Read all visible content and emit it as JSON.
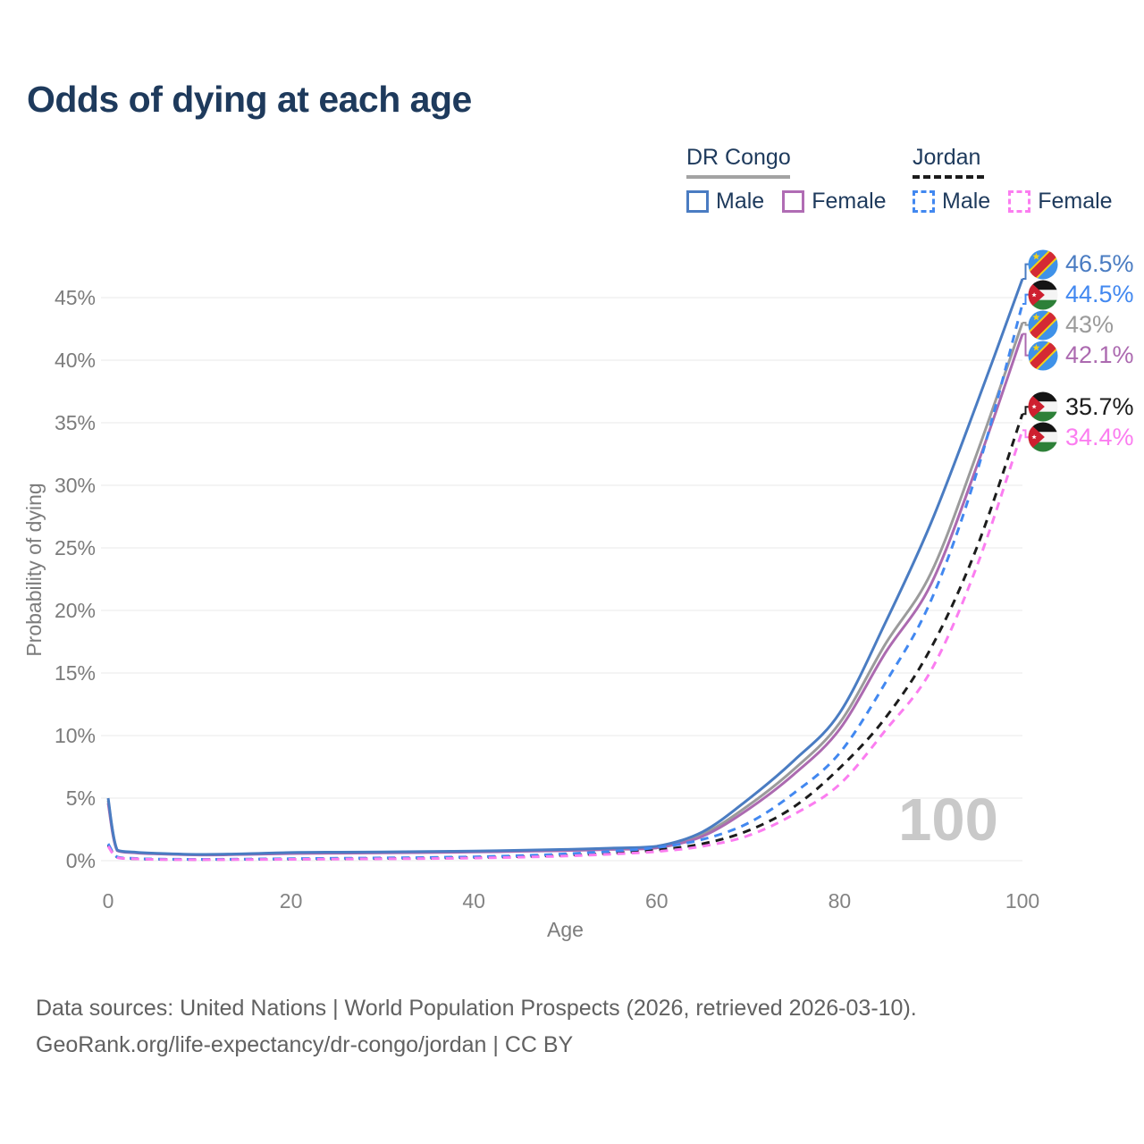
{
  "title": "Odds of dying at each age",
  "legend": {
    "groups": [
      {
        "name": "DR Congo",
        "line_style": "solid",
        "line_color": "#a3a3a3",
        "items": [
          {
            "label": "Male",
            "color": "#4a7cc2",
            "style": "solid"
          },
          {
            "label": "Female",
            "color": "#b06cb4",
            "style": "solid"
          }
        ]
      },
      {
        "name": "Jordan",
        "line_style": "dashed",
        "line_color": "#1c1c1c",
        "items": [
          {
            "label": "Male",
            "color": "#4288f0",
            "style": "dashed"
          },
          {
            "label": "Female",
            "color": "#fb7df0",
            "style": "dashed"
          }
        ]
      }
    ]
  },
  "chart_data": {
    "type": "line",
    "title": "Odds of dying at each age",
    "xlabel": "Age",
    "ylabel": "Probability of dying",
    "xlim": [
      0,
      100
    ],
    "ylim": [
      0,
      48
    ],
    "xticks": [
      0,
      20,
      40,
      60,
      80,
      100
    ],
    "ytick_values": [
      0,
      5,
      10,
      15,
      20,
      25,
      30,
      35,
      40,
      45
    ],
    "ytick_labels": [
      "0%",
      "5%",
      "10%",
      "15%",
      "20%",
      "25%",
      "30%",
      "35%",
      "40%",
      "45%"
    ],
    "grid": "horizontal",
    "legend_position": "top-right",
    "watermark": "100",
    "ages": [
      0,
      1,
      3,
      5,
      10,
      15,
      20,
      25,
      30,
      35,
      40,
      45,
      50,
      55,
      60,
      65,
      70,
      75,
      80,
      85,
      90,
      95,
      100
    ],
    "series": [
      {
        "name": "DR Congo Male",
        "country": "DR Congo",
        "sex": "Male",
        "style": "solid",
        "color": "#4a7cc2",
        "flag": "cd",
        "end_label": "46.5%",
        "end_value": 46.5,
        "values": [
          5.0,
          0.85,
          0.68,
          0.6,
          0.5,
          0.55,
          0.65,
          0.68,
          0.7,
          0.73,
          0.77,
          0.83,
          0.9,
          1.0,
          1.15,
          2.3,
          4.9,
          8.0,
          11.8,
          19.0,
          27.0,
          36.5,
          46.5
        ]
      },
      {
        "name": "DR Congo Female",
        "country": "DR Congo",
        "sex": "Female",
        "style": "solid",
        "color": "#ac6ab0",
        "flag": "cd",
        "end_label": "42.1%",
        "end_value": 42.1,
        "values": [
          4.6,
          0.8,
          0.63,
          0.55,
          0.46,
          0.5,
          0.57,
          0.6,
          0.62,
          0.65,
          0.69,
          0.75,
          0.81,
          0.9,
          1.02,
          1.95,
          4.1,
          6.9,
          10.5,
          16.6,
          22.1,
          31.5,
          42.1
        ]
      },
      {
        "name": "DR Congo Both sexes",
        "country": "DR Congo",
        "sex": "Both sexes",
        "style": "solid",
        "color": "#9b9b9b",
        "flag": "cd",
        "end_label": "43%",
        "end_value": 43.0,
        "values": [
          4.8,
          0.82,
          0.65,
          0.57,
          0.48,
          0.52,
          0.6,
          0.63,
          0.65,
          0.68,
          0.72,
          0.78,
          0.85,
          0.95,
          1.08,
          2.1,
          4.4,
          7.3,
          11.0,
          17.3,
          23.0,
          32.5,
          43.0
        ]
      },
      {
        "name": "Jordan Male",
        "country": "Jordan",
        "sex": "Male",
        "style": "dashed",
        "color": "#4288f0",
        "flag": "jo",
        "end_label": "44.5%",
        "end_value": 44.5,
        "values": [
          1.35,
          0.3,
          0.18,
          0.13,
          0.11,
          0.13,
          0.16,
          0.19,
          0.22,
          0.26,
          0.31,
          0.4,
          0.54,
          0.75,
          1.05,
          1.7,
          3.0,
          5.4,
          8.6,
          14.2,
          20.8,
          31.0,
          44.5
        ]
      },
      {
        "name": "Jordan Female",
        "country": "Jordan",
        "sex": "Female",
        "style": "dashed",
        "color": "#fb7df0",
        "flag": "jo",
        "end_label": "34.4%",
        "end_value": 34.4,
        "values": [
          1.15,
          0.25,
          0.15,
          0.1,
          0.08,
          0.09,
          0.11,
          0.13,
          0.15,
          0.17,
          0.21,
          0.28,
          0.37,
          0.52,
          0.73,
          1.15,
          2.0,
          3.7,
          6.1,
          10.4,
          15.2,
          23.5,
          34.4
        ]
      },
      {
        "name": "Jordan Both sexes",
        "country": "Jordan",
        "sex": "Both sexes",
        "style": "dashed",
        "color": "#1c1c1c",
        "flag": "jo",
        "end_label": "35.7%",
        "end_value": 35.7,
        "values": [
          1.25,
          0.27,
          0.16,
          0.11,
          0.09,
          0.11,
          0.13,
          0.15,
          0.18,
          0.21,
          0.26,
          0.33,
          0.44,
          0.6,
          0.85,
          1.35,
          2.4,
          4.3,
          7.4,
          11.4,
          17.0,
          25.0,
          35.7
        ]
      }
    ]
  },
  "footer": {
    "line1": "Data sources: United Nations | World Population Prospects (2026, retrieved 2026-03-10).",
    "line2": "GeoRank.org/life-expectancy/dr-congo/jordan | CC BY"
  }
}
